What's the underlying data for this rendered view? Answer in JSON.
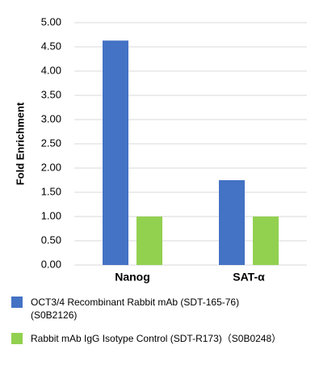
{
  "chart_data": {
    "type": "bar",
    "y_label": "Fold Enrichment",
    "categories": [
      "Nanog",
      "SAT-α"
    ],
    "series": [
      {
        "name": "OCT3/4 Recombinant Rabbit mAb (SDT-165-76) (S0B2126)",
        "color": "#4472c4",
        "values": [
          4.63,
          1.75
        ]
      },
      {
        "name": "Rabbit mAb IgG Isotype Control (SDT-R173)（S0B0248）",
        "color": "#92d050",
        "values": [
          1.0,
          1.0
        ]
      }
    ],
    "ylim": [
      0,
      5
    ],
    "yticks": [
      {
        "value": 0,
        "label": "0.00"
      },
      {
        "value": 0.5,
        "label": "0.50"
      },
      {
        "value": 1,
        "label": "1.00"
      },
      {
        "value": 1.5,
        "label": "1.50"
      },
      {
        "value": 2,
        "label": "2.00"
      },
      {
        "value": 2.5,
        "label": "2.50"
      },
      {
        "value": 3,
        "label": "3.00"
      },
      {
        "value": 3.5,
        "label": "3.50"
      },
      {
        "value": 4,
        "label": "4.00"
      },
      {
        "value": 4.5,
        "label": "4.50"
      },
      {
        "value": 5,
        "label": "5.00"
      }
    ],
    "grid": true
  }
}
